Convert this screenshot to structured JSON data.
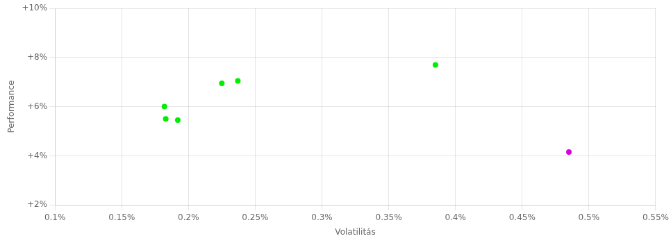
{
  "chart_data": {
    "type": "scatter",
    "x_label": "Volatilitás",
    "y_label": "Performance",
    "series": [
      {
        "color": "#00ee00",
        "x": [
          0.00182,
          0.00183,
          0.00192,
          0.00225,
          0.00237,
          0.00385
        ],
        "values": [
          0.06,
          0.055,
          0.0545,
          0.0695,
          0.0705,
          0.077
        ]
      },
      {
        "color": "#dd00dd",
        "x": [
          0.00485
        ],
        "values": [
          0.0415
        ]
      }
    ],
    "xlim": [
      0.001,
      0.0055
    ],
    "ylim": [
      0.02,
      0.1
    ],
    "xticks": [
      {
        "value": 0.001,
        "label": "0.1%"
      },
      {
        "value": 0.0015,
        "label": "0.15%"
      },
      {
        "value": 0.002,
        "label": "0.2%"
      },
      {
        "value": 0.0025,
        "label": "0.25%"
      },
      {
        "value": 0.003,
        "label": "0.3%"
      },
      {
        "value": 0.0035,
        "label": "0.35%"
      },
      {
        "value": 0.004,
        "label": "0.4%"
      },
      {
        "value": 0.0045,
        "label": "0.45%"
      },
      {
        "value": 0.005,
        "label": "0.5%"
      },
      {
        "value": 0.0055,
        "label": "0.55%"
      }
    ],
    "yticks": [
      {
        "value": 0.02,
        "label": "+2%"
      },
      {
        "value": 0.04,
        "label": "+4%"
      },
      {
        "value": 0.06,
        "label": "+6%"
      },
      {
        "value": 0.08,
        "label": "+8%"
      },
      {
        "value": 0.1,
        "label": "+10%"
      }
    ],
    "grid": true
  }
}
